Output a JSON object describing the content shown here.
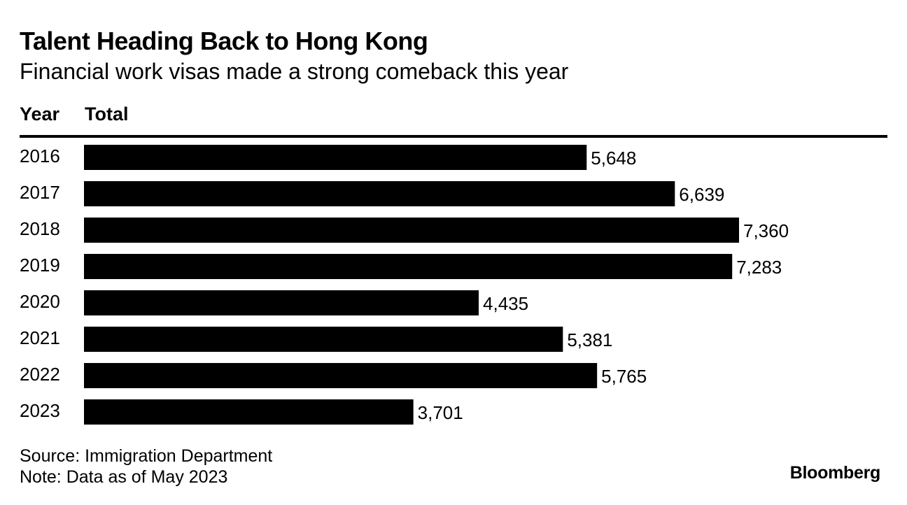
{
  "header": {
    "title": "Talent Heading Back to Hong Kong",
    "subtitle": "Financial work visas made a strong comeback this year",
    "col_year": "Year",
    "col_total": "Total"
  },
  "chart_data": {
    "type": "bar",
    "orientation": "horizontal",
    "title": "Talent Heading Back to Hong Kong",
    "subtitle": "Financial work visas made a strong comeback this year",
    "xlabel": "Total",
    "ylabel": "Year",
    "categories": [
      "2016",
      "2017",
      "2018",
      "2019",
      "2020",
      "2021",
      "2022",
      "2023"
    ],
    "values": [
      5648,
      6639,
      7360,
      7283,
      4435,
      5381,
      5765,
      3701
    ],
    "value_labels": [
      "5,648",
      "6,639",
      "7,360",
      "7,283",
      "4,435",
      "5,381",
      "5,765",
      "3,701"
    ],
    "xlim": [
      0,
      7360
    ],
    "grid": false,
    "legend": "none"
  },
  "footer": {
    "source": "Source: Immigration Department",
    "note": "Note: Data as of May 2023",
    "brand": "Bloomberg"
  },
  "colors": {
    "bar": "#000000",
    "text": "#000000",
    "background": "#ffffff"
  }
}
